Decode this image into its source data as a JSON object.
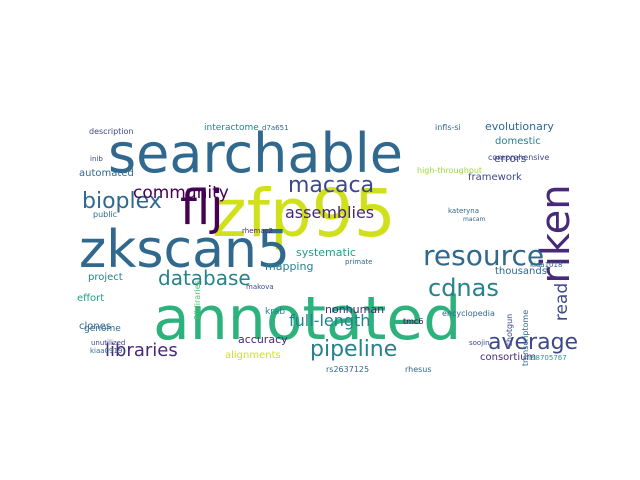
{
  "colors": {
    "yellow": "#d0e11c",
    "lime": "#a0da39",
    "green": "#4ac16d",
    "teal_green": "#2db27d",
    "teal": "#1fa187",
    "cyan": "#26828e",
    "blue": "#31688e",
    "indigo": "#3e4989",
    "violet": "#482878",
    "dark": "#440154"
  },
  "words": [
    {
      "text": "searchable",
      "color": "blue",
      "size": 54,
      "rotate": 0
    },
    {
      "text": "zfp95",
      "color": "yellow",
      "size": 66,
      "rotate": 0
    },
    {
      "text": "annotated",
      "color": "teal_green",
      "size": 60,
      "rotate": 0
    },
    {
      "text": "zkscan5",
      "color": "blue",
      "size": 52,
      "rotate": 0
    },
    {
      "text": "flj",
      "color": "dark",
      "size": 48,
      "rotate": 0
    },
    {
      "text": "riken",
      "color": "violet",
      "size": 40,
      "rotate": -90
    },
    {
      "text": "resource",
      "color": "blue",
      "size": 28,
      "rotate": 0
    },
    {
      "text": "bioplex",
      "color": "blue",
      "size": 22,
      "rotate": 0
    },
    {
      "text": "macaca",
      "color": "indigo",
      "size": 22,
      "rotate": 0
    },
    {
      "text": "community",
      "color": "dark",
      "size": 17,
      "rotate": 0
    },
    {
      "text": "database",
      "color": "cyan",
      "size": 20,
      "rotate": 0
    },
    {
      "text": "cdnas",
      "color": "cyan",
      "size": 24,
      "rotate": 0
    },
    {
      "text": "libraries",
      "color": "violet",
      "size": 18,
      "rotate": 0
    },
    {
      "text": "pipeline",
      "color": "cyan",
      "size": 22,
      "rotate": 0
    },
    {
      "text": "average",
      "color": "indigo",
      "size": 22,
      "rotate": 0
    },
    {
      "text": "assemblies",
      "color": "violet",
      "size": 16,
      "rotate": 0
    },
    {
      "text": "full-length",
      "color": "cyan",
      "size": 16,
      "rotate": 0
    },
    {
      "text": "read",
      "color": "indigo",
      "size": 17,
      "rotate": -90
    },
    {
      "text": "evolutionary",
      "color": "blue",
      "size": 11,
      "rotate": 0
    },
    {
      "text": "domestic",
      "color": "cyan",
      "size": 10,
      "rotate": 0
    },
    {
      "text": "errors",
      "color": "indigo",
      "size": 11,
      "rotate": 0
    },
    {
      "text": "comprehensive",
      "color": "indigo",
      "size": 8,
      "rotate": 0
    },
    {
      "text": "framework",
      "color": "indigo",
      "size": 10,
      "rotate": 0
    },
    {
      "text": "high-throughput",
      "color": "lime",
      "size": 8,
      "rotate": 0
    },
    {
      "text": "interactome",
      "color": "cyan",
      "size": 9,
      "rotate": 0
    },
    {
      "text": "d7a651",
      "color": "blue",
      "size": 7,
      "rotate": 0
    },
    {
      "text": "automated",
      "color": "blue",
      "size": 10,
      "rotate": 0
    },
    {
      "text": "public",
      "color": "blue",
      "size": 8,
      "rotate": 0
    },
    {
      "text": "description",
      "color": "indigo",
      "size": 8,
      "rotate": 0
    },
    {
      "text": "inib",
      "color": "indigo",
      "size": 7,
      "rotate": 0
    },
    {
      "text": "systematic",
      "color": "teal",
      "size": 11,
      "rotate": 0
    },
    {
      "text": "mapping",
      "color": "cyan",
      "size": 11,
      "rotate": 0
    },
    {
      "text": "project",
      "color": "cyan",
      "size": 10,
      "rotate": 0
    },
    {
      "text": "effort",
      "color": "teal",
      "size": 10,
      "rotate": 0
    },
    {
      "text": "clones",
      "color": "blue",
      "size": 10,
      "rotate": 0
    },
    {
      "text": "genome",
      "color": "blue",
      "size": 9,
      "rotate": 0
    },
    {
      "text": "unutilized",
      "color": "indigo",
      "size": 7,
      "rotate": 0
    },
    {
      "text": "kiaa0919",
      "color": "blue",
      "size": 7,
      "rotate": 0
    },
    {
      "text": "krab",
      "color": "cyan",
      "size": 9,
      "rotate": 0
    },
    {
      "text": "nonhuman",
      "color": "violet",
      "size": 11,
      "rotate": 0
    },
    {
      "text": "thousands",
      "color": "blue",
      "size": 10,
      "rotate": 0
    },
    {
      "text": "encyclopedia",
      "color": "blue",
      "size": 8,
      "rotate": 0
    },
    {
      "text": "soojin",
      "color": "indigo",
      "size": 7,
      "rotate": 0
    },
    {
      "text": "accuracy",
      "color": "violet",
      "size": 11,
      "rotate": 0
    },
    {
      "text": "alignments",
      "color": "yellow",
      "size": 10,
      "rotate": 0
    },
    {
      "text": "consortium",
      "color": "violet",
      "size": 10,
      "rotate": 0
    },
    {
      "text": "rs2637125",
      "color": "blue",
      "size": 8,
      "rotate": 0
    },
    {
      "text": "rhesus",
      "color": "blue",
      "size": 8,
      "rotate": 0
    },
    {
      "text": "rs8705767",
      "color": "teal",
      "size": 7,
      "rotate": 0
    },
    {
      "text": "kiaa1018",
      "color": "blue",
      "size": 7,
      "rotate": 0
    },
    {
      "text": "makova",
      "color": "indigo",
      "size": 7,
      "rotate": 0
    },
    {
      "text": "rhemac2",
      "color": "violet",
      "size": 7,
      "rotate": 0
    },
    {
      "text": "infls-si",
      "color": "blue",
      "size": 8,
      "rotate": 0
    },
    {
      "text": "primate",
      "color": "blue",
      "size": 7,
      "rotate": 0
    },
    {
      "text": "kateryna",
      "color": "blue",
      "size": 7,
      "rotate": 0
    },
    {
      "text": "macam",
      "color": "blue",
      "size": 6,
      "rotate": 0
    },
    {
      "text": "tmc6",
      "color": "dark",
      "size": 8,
      "rotate": 0
    },
    {
      "text": "shotgun",
      "color": "indigo",
      "size": 8,
      "rotate": -90
    },
    {
      "text": "transcriptome",
      "color": "blue",
      "size": 8,
      "rotate": -90
    },
    {
      "text": "8ibliraries",
      "color": "green",
      "size": 8,
      "rotate": -90
    },
    {
      "text": "cdna",
      "color": "blue",
      "size": 7,
      "rotate": -90
    }
  ]
}
